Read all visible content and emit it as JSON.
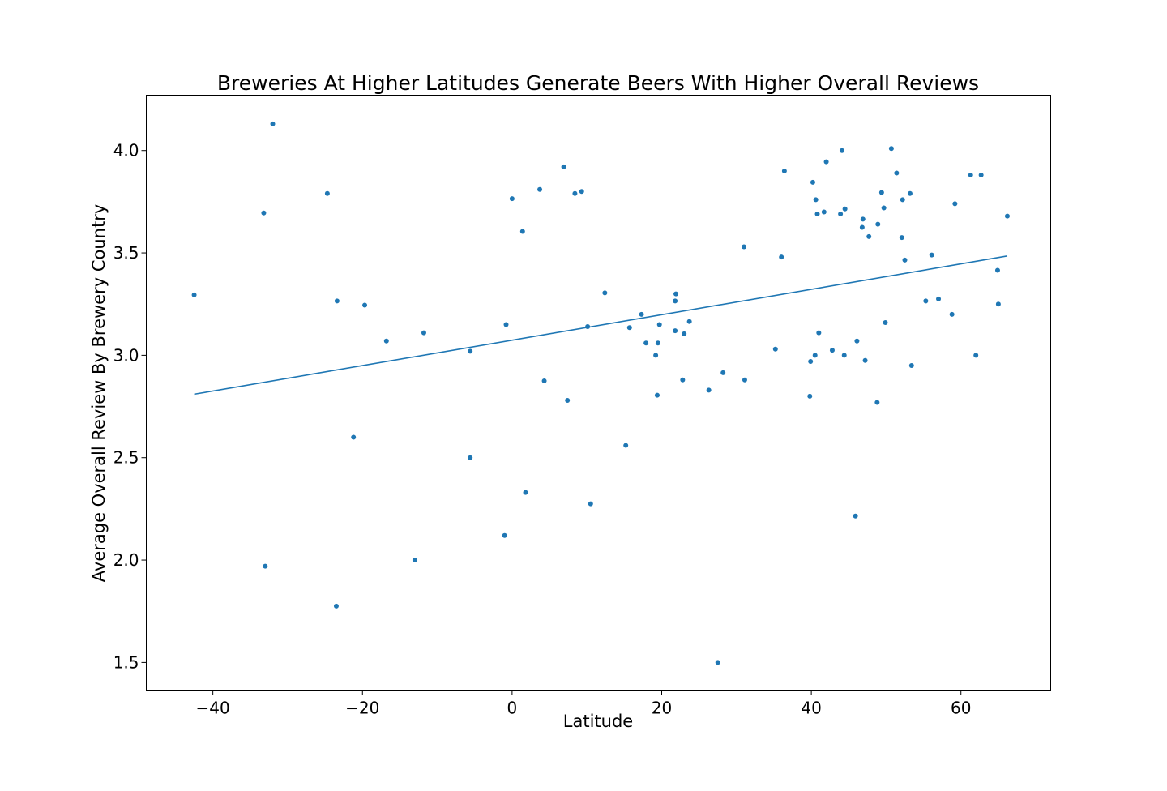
{
  "chart_data": {
    "type": "scatter",
    "title": "Breweries At Higher Latitudes Generate Beers With Higher Overall Reviews",
    "xlabel": "Latitude",
    "ylabel": "Average Overall Review By Brewery Country",
    "xlim": [
      -48.9,
      72.0
    ],
    "ylim": [
      1.365,
      4.27
    ],
    "x_ticks": [
      -40,
      -20,
      0,
      20,
      40,
      60
    ],
    "x_tick_labels": [
      "−40",
      "−20",
      "0",
      "20",
      "40",
      "60"
    ],
    "y_ticks": [
      1.5,
      2.0,
      2.5,
      3.0,
      3.5,
      4.0
    ],
    "y_tick_labels": [
      "1.5",
      "2.0",
      "2.5",
      "3.0",
      "3.5",
      "4.0"
    ],
    "grid": false,
    "legend": "none",
    "colors": {
      "points": "#1f77b4",
      "regression_line": "#1f77b4",
      "axes": "#000000"
    },
    "series": [
      {
        "kind": "points",
        "x": [
          -42.5,
          -33.2,
          -32.0,
          -33.0,
          -24.7,
          -23.5,
          -23.4,
          -21.2,
          -19.7,
          -16.8,
          -13.0,
          -11.8,
          -5.6,
          -5.6,
          -1.0,
          -0.8,
          0.0,
          1.4,
          1.8,
          3.7,
          4.3,
          6.9,
          7.4,
          8.4,
          9.3,
          10.1,
          10.5,
          12.4,
          15.2,
          15.7,
          17.3,
          17.9,
          19.2,
          19.4,
          19.5,
          19.7,
          21.8,
          21.8,
          21.9,
          22.8,
          23.0,
          23.7,
          26.3,
          27.5,
          28.2,
          31.0,
          31.1,
          35.2,
          36.0,
          36.4,
          39.8,
          39.9,
          40.2,
          40.5,
          40.6,
          40.8,
          41.0,
          41.7,
          42.0,
          42.8,
          43.9,
          44.1,
          44.4,
          44.5,
          45.9,
          46.1,
          46.8,
          46.9,
          47.2,
          47.7,
          48.8,
          48.9,
          49.4,
          49.7,
          49.9,
          50.7,
          51.4,
          52.1,
          52.2,
          52.5,
          53.2,
          53.4,
          55.3,
          56.1,
          57.0,
          58.8,
          59.2,
          61.3,
          62.0,
          62.7,
          64.9,
          65.0,
          66.2
        ],
        "y": [
          3.295,
          3.695,
          4.13,
          1.97,
          3.79,
          1.775,
          3.265,
          2.6,
          3.245,
          3.07,
          2.0,
          3.11,
          3.02,
          2.5,
          2.12,
          3.15,
          3.765,
          3.605,
          2.33,
          3.81,
          2.875,
          3.92,
          2.78,
          3.79,
          3.8,
          3.14,
          2.275,
          3.305,
          2.56,
          3.135,
          3.2,
          3.06,
          3.0,
          2.805,
          3.06,
          3.15,
          3.12,
          3.265,
          3.3,
          2.88,
          3.105,
          3.165,
          2.83,
          1.5,
          2.915,
          3.53,
          2.88,
          3.03,
          3.48,
          3.9,
          2.8,
          2.97,
          3.845,
          3.0,
          3.76,
          3.69,
          3.11,
          3.7,
          3.945,
          3.025,
          3.69,
          4.0,
          3.0,
          3.715,
          2.215,
          3.07,
          3.625,
          3.665,
          2.975,
          3.58,
          2.77,
          3.64,
          3.795,
          3.72,
          3.16,
          4.01,
          3.89,
          3.575,
          3.76,
          3.465,
          3.79,
          2.95,
          3.265,
          3.49,
          3.275,
          3.2,
          3.74,
          3.88,
          3.0,
          3.88,
          3.415,
          3.25,
          3.68
        ]
      },
      {
        "kind": "regression_line",
        "x": [
          -42.5,
          66.2
        ],
        "y": [
          2.81,
          3.485
        ]
      }
    ]
  }
}
